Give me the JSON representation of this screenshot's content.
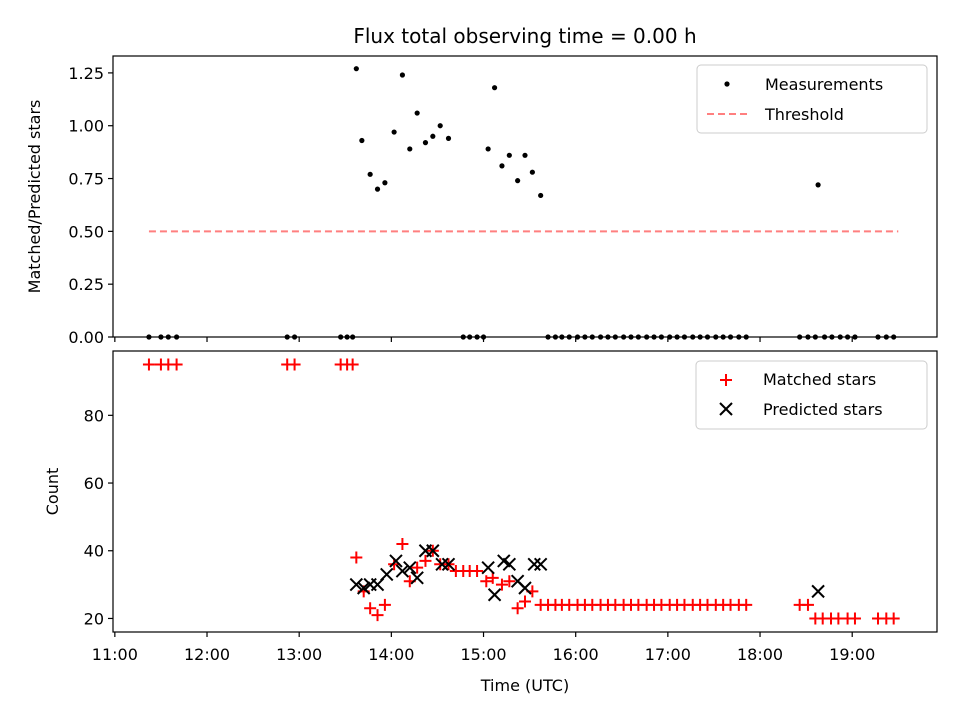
{
  "chart_data": [
    {
      "type": "scatter",
      "title": "Flux total observing time = 0.00 h",
      "ylabel": "Matched/Predicted stars",
      "xlabel": "",
      "xlim": [
        10.98,
        19.92
      ],
      "ylim": [
        0,
        1.33
      ],
      "xticks": [
        11,
        12,
        13,
        14,
        15,
        16,
        17,
        18,
        19
      ],
      "yticks": [
        0.0,
        0.25,
        0.5,
        0.75,
        1.0,
        1.25
      ],
      "ytick_labels": [
        "0.00",
        "0.25",
        "0.50",
        "0.75",
        "1.00",
        "1.25"
      ],
      "legend": {
        "placement": "top-right"
      },
      "series": [
        {
          "name": "Measurements",
          "marker": "dot",
          "color": "#000000",
          "x": [
            11.37,
            11.5,
            11.58,
            11.67,
            12.87,
            12.95,
            13.45,
            13.52,
            13.58,
            13.62,
            13.68,
            13.77,
            13.85,
            13.93,
            14.03,
            14.12,
            14.2,
            14.28,
            14.37,
            14.45,
            14.53,
            14.62,
            14.78,
            14.85,
            14.93,
            15.0,
            15.05,
            15.12,
            15.2,
            15.28,
            15.37,
            15.45,
            15.53,
            15.62,
            15.7,
            15.78,
            15.85,
            15.93,
            16.02,
            16.1,
            16.18,
            16.27,
            16.35,
            16.43,
            16.52,
            16.6,
            16.68,
            16.77,
            16.85,
            16.93,
            17.02,
            17.1,
            17.18,
            17.27,
            17.35,
            17.43,
            17.52,
            17.6,
            17.68,
            17.77,
            17.85,
            18.43,
            18.52,
            18.6,
            18.63,
            18.7,
            18.78,
            18.87,
            18.95,
            19.03,
            19.28,
            19.37,
            19.45
          ],
          "y": [
            0.0,
            0.0,
            0.0,
            0.0,
            0.0,
            0.0,
            0.0,
            0.0,
            0.0,
            1.27,
            0.93,
            0.77,
            0.7,
            0.73,
            0.97,
            1.24,
            0.89,
            1.06,
            0.92,
            0.95,
            1.0,
            0.94,
            0.0,
            0.0,
            0.0,
            0.0,
            0.89,
            1.18,
            0.81,
            0.86,
            0.74,
            0.86,
            0.78,
            0.67,
            0.0,
            0.0,
            0.0,
            0.0,
            0.0,
            0.0,
            0.0,
            0.0,
            0.0,
            0.0,
            0.0,
            0.0,
            0.0,
            0.0,
            0.0,
            0.0,
            0.0,
            0.0,
            0.0,
            0.0,
            0.0,
            0.0,
            0.0,
            0.0,
            0.0,
            0.0,
            0.0,
            0.0,
            0.0,
            0.0,
            0.72,
            0.0,
            0.0,
            0.0,
            0.0,
            0.0,
            0.0,
            0.0,
            0.0
          ]
        },
        {
          "name": "Threshold",
          "marker": "dashed-line",
          "color": "#ff7f7f",
          "x": [
            11.37,
            19.5
          ],
          "y": [
            0.5,
            0.5
          ]
        }
      ]
    },
    {
      "type": "scatter",
      "title": "",
      "ylabel": "Count",
      "xlabel": "Time (UTC)",
      "xlim": [
        10.98,
        19.92
      ],
      "ylim": [
        16,
        99
      ],
      "xticks": [
        11,
        12,
        13,
        14,
        15,
        16,
        17,
        18,
        19
      ],
      "xtick_labels": [
        "11:00",
        "12:00",
        "13:00",
        "14:00",
        "15:00",
        "16:00",
        "17:00",
        "18:00",
        "19:00"
      ],
      "yticks": [
        20,
        40,
        60,
        80
      ],
      "ytick_labels": [
        "20",
        "40",
        "60",
        "80"
      ],
      "legend": {
        "placement": "top-right"
      },
      "series": [
        {
          "name": "Matched stars",
          "marker": "plus",
          "color": "#ff0000",
          "x": [
            11.37,
            11.5,
            11.58,
            11.67,
            12.87,
            12.95,
            13.45,
            13.52,
            13.58,
            13.62,
            13.7,
            13.77,
            13.85,
            13.93,
            14.03,
            14.12,
            14.2,
            14.28,
            14.37,
            14.45,
            14.53,
            14.62,
            14.7,
            14.78,
            14.85,
            14.93,
            15.03,
            15.1,
            15.2,
            15.28,
            15.37,
            15.45,
            15.53,
            15.62,
            15.7,
            15.78,
            15.85,
            15.93,
            16.02,
            16.1,
            16.18,
            16.27,
            16.35,
            16.43,
            16.52,
            16.6,
            16.68,
            16.77,
            16.85,
            16.93,
            17.02,
            17.1,
            17.18,
            17.27,
            17.35,
            17.43,
            17.52,
            17.6,
            17.68,
            17.77,
            17.85,
            18.43,
            18.52,
            18.6,
            18.68,
            18.77,
            18.85,
            18.95,
            19.03,
            19.28,
            19.37,
            19.45
          ],
          "y": [
            95,
            95,
            95,
            95,
            95,
            95,
            95,
            95,
            95,
            38,
            28,
            23,
            21,
            24,
            36,
            42,
            31,
            35,
            37,
            40,
            36,
            36,
            34,
            34,
            34,
            34,
            31,
            32,
            30,
            31,
            23,
            25,
            28,
            24,
            24,
            24,
            24,
            24,
            24,
            24,
            24,
            24,
            24,
            24,
            24,
            24,
            24,
            24,
            24,
            24,
            24,
            24,
            24,
            24,
            24,
            24,
            24,
            24,
            24,
            24,
            24,
            24,
            24,
            20,
            20,
            20,
            20,
            20,
            20,
            20,
            20,
            20
          ]
        },
        {
          "name": "Predicted stars",
          "marker": "x",
          "color": "#000000",
          "x": [
            13.62,
            13.7,
            13.77,
            13.85,
            13.95,
            14.05,
            14.12,
            14.2,
            14.28,
            14.37,
            14.45,
            14.55,
            14.62,
            15.05,
            15.12,
            15.22,
            15.28,
            15.37,
            15.45,
            15.55,
            15.62,
            18.63
          ],
          "y": [
            30,
            29,
            30,
            30,
            33,
            37,
            34,
            35,
            32,
            40,
            40,
            36,
            36,
            35,
            27,
            37,
            36,
            31,
            29,
            36,
            36,
            28
          ]
        }
      ]
    }
  ]
}
